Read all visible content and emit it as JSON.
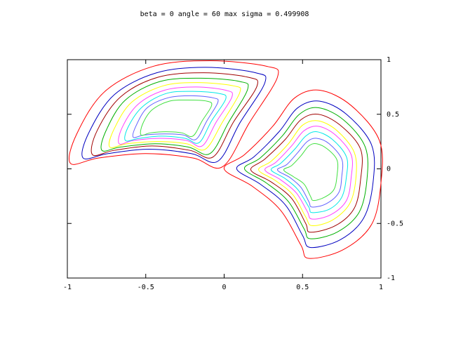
{
  "chart_data": {
    "type": "contour",
    "title": "beta = 0  angle = 60  max sigma = 0.499908",
    "xlim": [
      -1,
      1
    ],
    "ylim": [
      -1,
      1
    ],
    "xticks": [
      -1,
      -0.5,
      0,
      0.5,
      1
    ],
    "yticks": [
      -1,
      -0.5,
      0,
      0.5,
      1
    ],
    "series": [
      {
        "color": "#ff0000",
        "x": [
          -0.98,
          -0.94,
          -0.76,
          -0.45,
          -0.09,
          0.27,
          0.34,
          0.16,
          -0.01,
          -0.2,
          -0.5,
          -0.8
        ],
        "y": [
          0.05,
          0.32,
          0.71,
          0.94,
          0.99,
          0.94,
          0.84,
          0.42,
          0.02,
          0.1,
          0.14,
          0.1
        ]
      },
      {
        "color": "#0000c0",
        "x": [
          -0.9,
          -0.86,
          -0.7,
          -0.43,
          -0.12,
          0.2,
          0.26,
          0.1,
          -0.04,
          -0.21,
          -0.48,
          -0.74
        ],
        "y": [
          0.1,
          0.34,
          0.68,
          0.88,
          0.93,
          0.88,
          0.79,
          0.42,
          0.07,
          0.14,
          0.18,
          0.14
        ]
      },
      {
        "color": "#a00000",
        "x": [
          -0.84,
          -0.81,
          -0.66,
          -0.42,
          -0.13,
          0.15,
          0.21,
          0.06,
          -0.07,
          -0.22,
          -0.46,
          -0.7
        ],
        "y": [
          0.13,
          0.35,
          0.66,
          0.84,
          0.88,
          0.84,
          0.76,
          0.43,
          0.11,
          0.17,
          0.21,
          0.17
        ]
      },
      {
        "color": "#00b000",
        "x": [
          -0.78,
          -0.75,
          -0.63,
          -0.41,
          -0.15,
          0.1,
          0.15,
          0.03,
          -0.09,
          -0.23,
          -0.44,
          -0.66
        ],
        "y": [
          0.17,
          0.36,
          0.63,
          0.8,
          0.83,
          0.8,
          0.73,
          0.43,
          0.14,
          0.2,
          0.23,
          0.2
        ]
      },
      {
        "color": "#ffff00",
        "x": [
          -0.73,
          -0.7,
          -0.59,
          -0.39,
          -0.17,
          0.06,
          0.1,
          -0.01,
          -0.12,
          -0.24,
          -0.43,
          -0.62
        ],
        "y": [
          0.2,
          0.37,
          0.61,
          0.76,
          0.79,
          0.76,
          0.7,
          0.43,
          0.18,
          0.23,
          0.25,
          0.23
        ]
      },
      {
        "color": "#ff40ff",
        "x": [
          -0.67,
          -0.65,
          -0.55,
          -0.38,
          -0.18,
          0.01,
          0.05,
          -0.05,
          -0.14,
          -0.24,
          -0.41,
          -0.58
        ],
        "y": [
          0.23,
          0.38,
          0.59,
          0.72,
          0.75,
          0.72,
          0.66,
          0.43,
          0.21,
          0.26,
          0.28,
          0.26
        ]
      },
      {
        "color": "#00e8e8",
        "x": [
          -0.63,
          -0.61,
          -0.52,
          -0.37,
          -0.2,
          -0.03,
          0.01,
          -0.08,
          -0.16,
          -0.25,
          -0.4,
          -0.54
        ],
        "y": [
          0.26,
          0.39,
          0.57,
          0.69,
          0.71,
          0.69,
          0.64,
          0.44,
          0.24,
          0.28,
          0.3,
          0.28
        ]
      },
      {
        "color": "#6060ff",
        "x": [
          -0.58,
          -0.56,
          -0.49,
          -0.36,
          -0.21,
          -0.07,
          -0.04,
          -0.11,
          -0.18,
          -0.26,
          -0.38,
          -0.51
        ],
        "y": [
          0.29,
          0.4,
          0.56,
          0.65,
          0.67,
          0.65,
          0.61,
          0.44,
          0.27,
          0.31,
          0.32,
          0.31
        ]
      },
      {
        "color": "#40e040",
        "x": [
          -0.53,
          -0.52,
          -0.46,
          -0.35,
          -0.23,
          -0.11,
          -0.08,
          -0.14,
          -0.2,
          -0.27,
          -0.37,
          -0.47
        ],
        "y": [
          0.31,
          0.41,
          0.54,
          0.62,
          0.63,
          0.62,
          0.58,
          0.44,
          0.3,
          0.33,
          0.34,
          0.33
        ]
      },
      {
        "color": "#ff0000",
        "x": [
          0,
          0.13,
          0.31,
          0.45,
          0.61,
          0.81,
          0.99,
          1,
          0.94,
          0.76,
          0.54,
          0.49,
          0.36,
          0.18
        ],
        "y": [
          0,
          0.13,
          0.39,
          0.65,
          0.72,
          0.58,
          0.26,
          -0.13,
          -0.51,
          -0.74,
          -0.82,
          -0.7,
          -0.38,
          -0.16
        ]
      },
      {
        "color": "#0000c0",
        "x": [
          0.08,
          0.19,
          0.35,
          0.47,
          0.61,
          0.78,
          0.94,
          0.95,
          0.89,
          0.74,
          0.55,
          0.5,
          0.39,
          0.23
        ],
        "y": [
          0,
          0.11,
          0.34,
          0.56,
          0.62,
          0.5,
          0.22,
          -0.12,
          -0.45,
          -0.65,
          -0.72,
          -0.61,
          -0.33,
          -0.14
        ]
      },
      {
        "color": "#00b000",
        "x": [
          0.13,
          0.23,
          0.37,
          0.48,
          0.6,
          0.76,
          0.9,
          0.91,
          0.86,
          0.72,
          0.55,
          0.51,
          0.41,
          0.27
        ],
        "y": [
          0,
          0.1,
          0.3,
          0.5,
          0.56,
          0.45,
          0.2,
          -0.11,
          -0.4,
          -0.58,
          -0.64,
          -0.55,
          -0.3,
          -0.13
        ]
      },
      {
        "color": "#a00000",
        "x": [
          0.17,
          0.26,
          0.39,
          0.49,
          0.6,
          0.74,
          0.87,
          0.87,
          0.83,
          0.71,
          0.55,
          0.52,
          0.43,
          0.3
        ],
        "y": [
          -0.01,
          0.09,
          0.27,
          0.45,
          0.5,
          0.4,
          0.18,
          -0.1,
          -0.36,
          -0.52,
          -0.58,
          -0.5,
          -0.27,
          -0.12
        ]
      },
      {
        "color": "#ffff00",
        "x": [
          0.22,
          0.3,
          0.41,
          0.5,
          0.6,
          0.72,
          0.83,
          0.84,
          0.8,
          0.69,
          0.56,
          0.52,
          0.44,
          0.33
        ],
        "y": [
          -0.01,
          0.07,
          0.23,
          0.4,
          0.44,
          0.35,
          0.15,
          -0.09,
          -0.32,
          -0.47,
          -0.52,
          -0.44,
          -0.24,
          -0.11
        ]
      },
      {
        "color": "#ff40ff",
        "x": [
          0.26,
          0.33,
          0.43,
          0.51,
          0.6,
          0.71,
          0.81,
          0.81,
          0.78,
          0.68,
          0.56,
          0.53,
          0.46,
          0.36
        ],
        "y": [
          -0.01,
          0.06,
          0.21,
          0.35,
          0.39,
          0.31,
          0.13,
          -0.08,
          -0.29,
          -0.42,
          -0.46,
          -0.39,
          -0.22,
          -0.1
        ]
      },
      {
        "color": "#00e8e8",
        "x": [
          0.3,
          0.36,
          0.45,
          0.52,
          0.59,
          0.69,
          0.78,
          0.78,
          0.75,
          0.67,
          0.56,
          0.54,
          0.47,
          0.39
        ],
        "y": [
          -0.01,
          0.05,
          0.18,
          0.3,
          0.34,
          0.27,
          0.11,
          -0.07,
          -0.26,
          -0.37,
          -0.4,
          -0.35,
          -0.19,
          -0.09
        ]
      },
      {
        "color": "#6060ff",
        "x": [
          0.34,
          0.4,
          0.47,
          0.53,
          0.59,
          0.67,
          0.75,
          0.75,
          0.73,
          0.65,
          0.56,
          0.54,
          0.49,
          0.42
        ],
        "y": [
          -0.01,
          0.04,
          0.15,
          0.25,
          0.28,
          0.23,
          0.09,
          -0.07,
          -0.22,
          -0.32,
          -0.35,
          -0.3,
          -0.17,
          -0.08
        ]
      },
      {
        "color": "#40e040",
        "x": [
          0.38,
          0.43,
          0.49,
          0.54,
          0.59,
          0.66,
          0.72,
          0.72,
          0.7,
          0.64,
          0.57,
          0.55,
          0.51,
          0.44
        ],
        "y": [
          -0.01,
          0.03,
          0.12,
          0.21,
          0.23,
          0.18,
          0.08,
          -0.06,
          -0.19,
          -0.26,
          -0.29,
          -0.25,
          -0.14,
          -0.07
        ]
      }
    ]
  }
}
